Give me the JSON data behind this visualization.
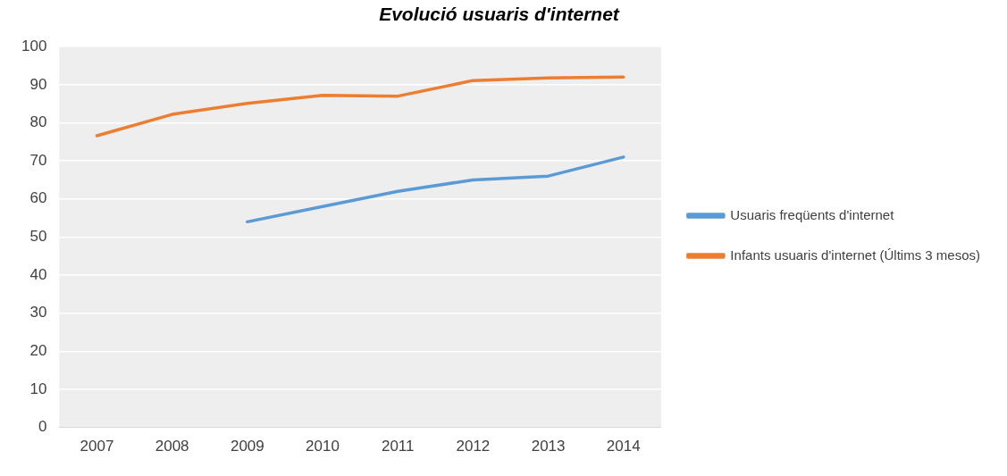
{
  "chart_data": {
    "type": "line",
    "title": "Evolució usuaris d'internet",
    "categories": [
      "2007",
      "2008",
      "2009",
      "2010",
      "2011",
      "2012",
      "2013",
      "2014"
    ],
    "series": [
      {
        "name": "Usuaris freqüents d'internet",
        "color": "#5b9bd5",
        "values": [
          null,
          null,
          54,
          58,
          62,
          65,
          66,
          71
        ]
      },
      {
        "name": "Infants usuaris d'internet (Últims 3 mesos)",
        "color": "#ed7d31",
        "values": [
          76.6,
          82.2,
          85.1,
          87.2,
          87,
          91.1,
          91.8,
          92
        ]
      }
    ],
    "ylim": [
      0,
      100
    ],
    "yticks": [
      0,
      10,
      20,
      30,
      40,
      50,
      60,
      70,
      80,
      90,
      100
    ],
    "grid": "y",
    "legend": "right",
    "marker": "none"
  }
}
